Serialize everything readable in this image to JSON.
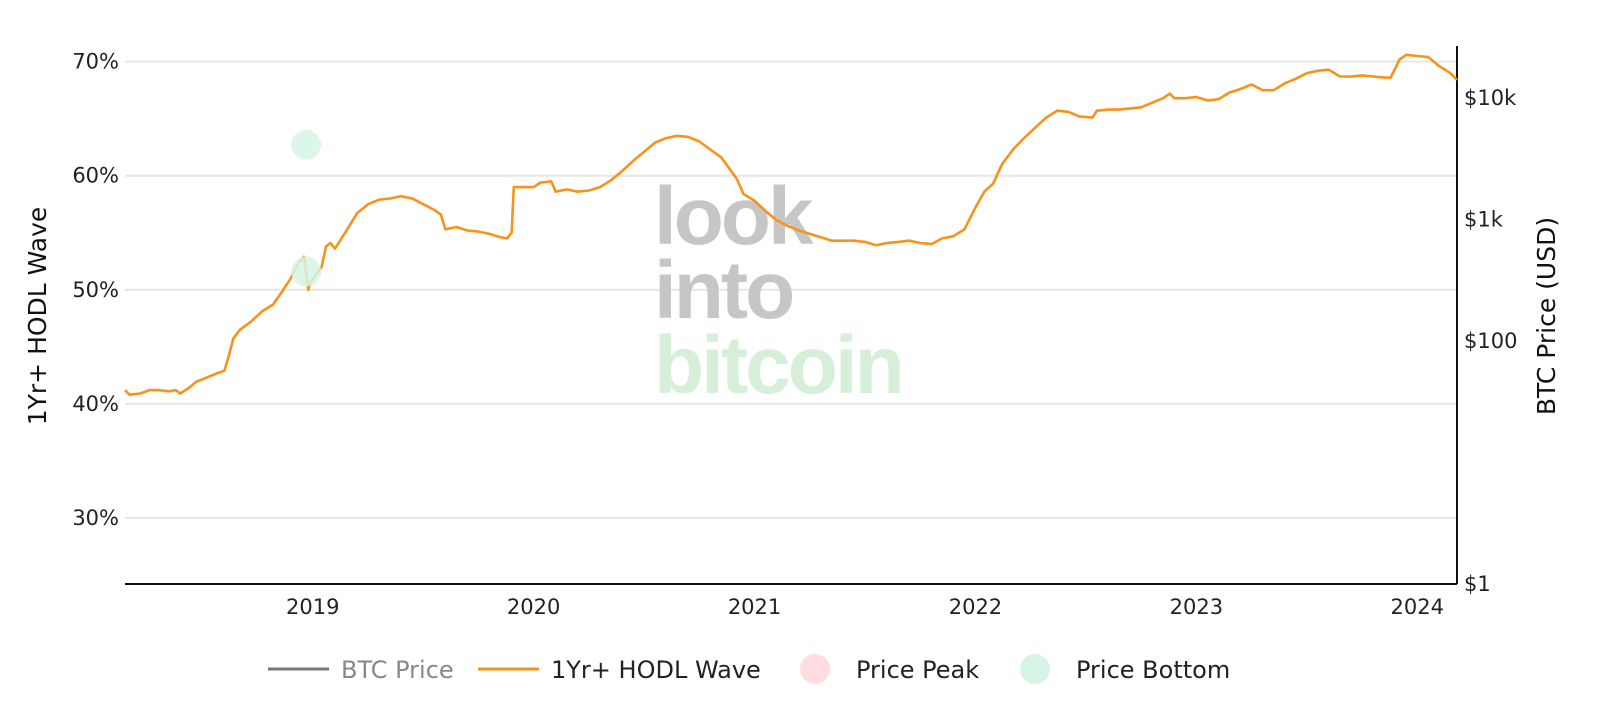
{
  "chart_data": {
    "type": "line",
    "x_axis": {
      "min": 2018.15,
      "max": 2024.18,
      "ticks": [
        2019,
        2020,
        2021,
        2022,
        2023,
        2024
      ],
      "tick_labels": [
        "2019",
        "2020",
        "2021",
        "2022",
        "2023",
        "2024"
      ]
    },
    "y_axis": {
      "label": "1Yr+ HODL Wave",
      "min": 24.2,
      "max": 71.9,
      "ticks": [
        30,
        40,
        50,
        60,
        70
      ],
      "tick_labels": [
        "30%",
        "40%",
        "50%",
        "60%",
        "70%"
      ],
      "grid": true
    },
    "y2_axis": {
      "label": "BTC Price (USD)",
      "scale": "log",
      "min": 1,
      "max": 30000,
      "ticks": [
        1,
        100,
        1000,
        10000
      ],
      "tick_labels": [
        "$1",
        "$100",
        "$1k",
        "$10k"
      ]
    },
    "series": [
      {
        "name": "1Yr+ HODL Wave",
        "color": "#f7931a",
        "points": [
          [
            2018.15,
            41.2
          ],
          [
            2018.17,
            40.8
          ],
          [
            2018.22,
            40.9
          ],
          [
            2018.26,
            41.2
          ],
          [
            2018.3,
            41.2
          ],
          [
            2018.35,
            41.1
          ],
          [
            2018.38,
            41.2
          ],
          [
            2018.4,
            40.9
          ],
          [
            2018.44,
            41.4
          ],
          [
            2018.47,
            41.9
          ],
          [
            2018.52,
            42.3
          ],
          [
            2018.57,
            42.7
          ],
          [
            2018.6,
            42.9
          ],
          [
            2018.62,
            44.2
          ],
          [
            2018.64,
            45.7
          ],
          [
            2018.67,
            46.5
          ],
          [
            2018.72,
            47.2
          ],
          [
            2018.77,
            48.1
          ],
          [
            2018.82,
            48.7
          ],
          [
            2018.86,
            49.8
          ],
          [
            2018.9,
            51.0
          ],
          [
            2018.93,
            52.2
          ],
          [
            2018.96,
            52.9
          ],
          [
            2018.97,
            51.5
          ],
          [
            2018.98,
            50.0
          ],
          [
            2018.99,
            50.7
          ],
          [
            2019.01,
            51.2
          ],
          [
            2019.04,
            52.0
          ],
          [
            2019.06,
            53.8
          ],
          [
            2019.08,
            54.1
          ],
          [
            2019.1,
            53.6
          ],
          [
            2019.15,
            55.1
          ],
          [
            2019.2,
            56.7
          ],
          [
            2019.25,
            57.5
          ],
          [
            2019.3,
            57.9
          ],
          [
            2019.35,
            58.0
          ],
          [
            2019.4,
            58.2
          ],
          [
            2019.45,
            58.0
          ],
          [
            2019.5,
            57.5
          ],
          [
            2019.55,
            57.0
          ],
          [
            2019.58,
            56.6
          ],
          [
            2019.6,
            55.3
          ],
          [
            2019.65,
            55.5
          ],
          [
            2019.7,
            55.2
          ],
          [
            2019.75,
            55.1
          ],
          [
            2019.8,
            54.9
          ],
          [
            2019.85,
            54.6
          ],
          [
            2019.88,
            54.5
          ],
          [
            2019.9,
            55.0
          ],
          [
            2019.91,
            59.0
          ],
          [
            2019.95,
            59.0
          ],
          [
            2020.0,
            59.0
          ],
          [
            2020.03,
            59.4
          ],
          [
            2020.08,
            59.5
          ],
          [
            2020.1,
            58.6
          ],
          [
            2020.15,
            58.8
          ],
          [
            2020.2,
            58.6
          ],
          [
            2020.25,
            58.7
          ],
          [
            2020.3,
            59.0
          ],
          [
            2020.35,
            59.6
          ],
          [
            2020.4,
            60.4
          ],
          [
            2020.45,
            61.3
          ],
          [
            2020.5,
            62.1
          ],
          [
            2020.55,
            62.9
          ],
          [
            2020.6,
            63.3
          ],
          [
            2020.65,
            63.5
          ],
          [
            2020.7,
            63.4
          ],
          [
            2020.75,
            63.0
          ],
          [
            2020.8,
            62.3
          ],
          [
            2020.85,
            61.6
          ],
          [
            2020.88,
            60.8
          ],
          [
            2020.92,
            59.7
          ],
          [
            2020.95,
            58.4
          ],
          [
            2021.0,
            57.8
          ],
          [
            2021.05,
            56.9
          ],
          [
            2021.1,
            56.1
          ],
          [
            2021.15,
            55.6
          ],
          [
            2021.2,
            55.2
          ],
          [
            2021.25,
            54.9
          ],
          [
            2021.3,
            54.6
          ],
          [
            2021.35,
            54.3
          ],
          [
            2021.4,
            54.3
          ],
          [
            2021.45,
            54.3
          ],
          [
            2021.5,
            54.2
          ],
          [
            2021.55,
            53.9
          ],
          [
            2021.6,
            54.1
          ],
          [
            2021.65,
            54.2
          ],
          [
            2021.7,
            54.3
          ],
          [
            2021.75,
            54.1
          ],
          [
            2021.8,
            54.0
          ],
          [
            2021.85,
            54.5
          ],
          [
            2021.9,
            54.7
          ],
          [
            2021.95,
            55.3
          ],
          [
            2022.0,
            57.2
          ],
          [
            2022.04,
            58.6
          ],
          [
            2022.08,
            59.3
          ],
          [
            2022.12,
            61.0
          ],
          [
            2022.17,
            62.3
          ],
          [
            2022.22,
            63.3
          ],
          [
            2022.27,
            64.2
          ],
          [
            2022.32,
            65.1
          ],
          [
            2022.37,
            65.7
          ],
          [
            2022.42,
            65.6
          ],
          [
            2022.47,
            65.2
          ],
          [
            2022.53,
            65.1
          ],
          [
            2022.55,
            65.7
          ],
          [
            2022.6,
            65.8
          ],
          [
            2022.65,
            65.8
          ],
          [
            2022.7,
            65.9
          ],
          [
            2022.75,
            66.0
          ],
          [
            2022.8,
            66.4
          ],
          [
            2022.85,
            66.8
          ],
          [
            2022.88,
            67.2
          ],
          [
            2022.9,
            66.8
          ],
          [
            2022.95,
            66.8
          ],
          [
            2023.0,
            66.9
          ],
          [
            2023.05,
            66.6
          ],
          [
            2023.1,
            66.7
          ],
          [
            2023.15,
            67.3
          ],
          [
            2023.2,
            67.6
          ],
          [
            2023.25,
            68.0
          ],
          [
            2023.3,
            67.5
          ],
          [
            2023.35,
            67.5
          ],
          [
            2023.4,
            68.1
          ],
          [
            2023.45,
            68.5
          ],
          [
            2023.5,
            69.0
          ],
          [
            2023.55,
            69.2
          ],
          [
            2023.6,
            69.3
          ],
          [
            2023.65,
            68.7
          ],
          [
            2023.7,
            68.7
          ],
          [
            2023.75,
            68.8
          ],
          [
            2023.8,
            68.7
          ],
          [
            2023.85,
            68.6
          ],
          [
            2023.88,
            68.6
          ],
          [
            2023.92,
            70.2
          ],
          [
            2023.95,
            70.6
          ],
          [
            2024.0,
            70.5
          ],
          [
            2024.05,
            70.4
          ],
          [
            2024.1,
            69.6
          ],
          [
            2024.15,
            69.0
          ],
          [
            2024.18,
            68.4
          ]
        ]
      },
      {
        "name": "Price Bottom",
        "color": "#d7f5e6",
        "points": [
          [
            2018.97,
            62.7
          ],
          [
            2018.97,
            51.6
          ]
        ]
      }
    ],
    "legend": [
      {
        "name": "BTC Price",
        "marker": "line",
        "color": "#777777",
        "muted": true
      },
      {
        "name": "1Yr+ HODL Wave",
        "marker": "line",
        "color": "#f7931a",
        "muted": false
      },
      {
        "name": "Price Peak",
        "marker": "circle",
        "color": "#ffdde0",
        "muted": false
      },
      {
        "name": "Price Bottom",
        "marker": "circle",
        "color": "#d7f5e6",
        "muted": false
      }
    ],
    "legend_position": "bottom-center"
  },
  "watermark": {
    "lines": [
      {
        "text": "look",
        "color": "#c6c6c6"
      },
      {
        "text": "into",
        "color": "#c6c6c6"
      },
      {
        "text": "bitcoin",
        "color": "#d5efd9"
      }
    ]
  }
}
